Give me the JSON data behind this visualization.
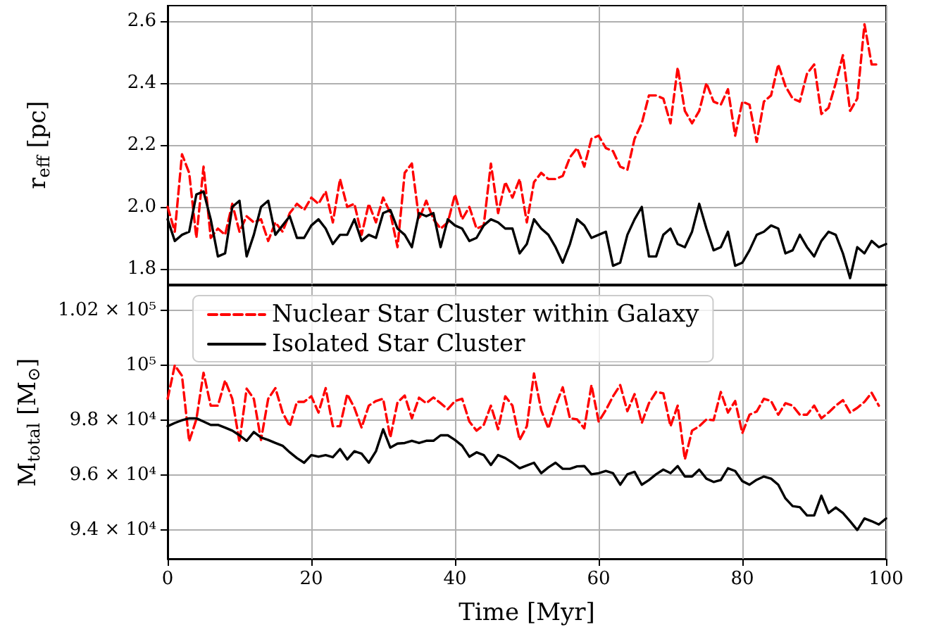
{
  "chart_data": [
    {
      "type": "line",
      "ylabel": "r$_{eff}$ [pc]",
      "xlim": [
        0,
        100
      ],
      "xticks": [
        0,
        20,
        40,
        60,
        80,
        100
      ],
      "ylim": [
        1.75,
        2.65
      ],
      "yticks": [
        1.8,
        {
          "value": 2,
          "label": "2.0"
        },
        2.2,
        2.4,
        2.6
      ],
      "grid": true,
      "marker": "none",
      "tick_labels": "y",
      "series": [
        {
          "color": "#ff0000",
          "line_style": "dashed",
          "x": [
            0,
            1,
            2,
            3,
            4,
            5,
            6,
            7,
            8,
            9,
            10,
            11,
            12,
            13,
            14,
            15,
            16,
            17,
            18,
            19,
            20,
            21,
            22,
            23,
            24,
            25,
            26,
            27,
            28,
            29,
            30,
            31,
            32,
            33,
            34,
            35,
            36,
            37,
            38,
            39,
            40,
            41,
            42,
            43,
            44,
            45,
            46,
            47,
            48,
            49,
            50,
            51,
            52,
            53,
            54,
            55,
            56,
            57,
            58,
            59,
            60,
            61,
            62,
            63,
            64,
            65,
            66,
            67,
            68,
            69,
            70,
            71,
            72,
            73,
            74,
            75,
            76,
            77,
            78,
            79,
            80,
            81,
            82,
            83,
            84,
            85,
            86,
            87,
            88,
            89,
            90,
            91,
            92,
            93,
            94,
            95,
            96,
            97,
            98,
            99
          ],
          "values": [
            2.0,
            1.92,
            2.17,
            2.11,
            1.9,
            2.13,
            1.9,
            1.93,
            1.91,
            2.01,
            1.92,
            1.97,
            1.95,
            1.96,
            1.89,
            1.95,
            1.92,
            1.98,
            2.01,
            1.99,
            2.03,
            2.01,
            2.05,
            1.95,
            2.09,
            2.0,
            2.01,
            1.91,
            2.01,
            1.95,
            2.03,
            1.98,
            1.87,
            2.11,
            2.14,
            1.96,
            2.02,
            1.96,
            1.93,
            1.95,
            2.04,
            1.96,
            2.0,
            1.93,
            1.94,
            2.14,
            1.98,
            2.08,
            2.03,
            2.09,
            1.95,
            2.08,
            2.11,
            2.09,
            2.09,
            2.1,
            2.16,
            2.19,
            2.13,
            2.22,
            2.23,
            2.19,
            2.18,
            2.13,
            2.12,
            2.22,
            2.27,
            2.36,
            2.36,
            2.35,
            2.27,
            2.45,
            2.31,
            2.27,
            2.31,
            2.4,
            2.34,
            2.33,
            2.38,
            2.23,
            2.34,
            2.33,
            2.21,
            2.34,
            2.36,
            2.46,
            2.39,
            2.35,
            2.34,
            2.43,
            2.46,
            2.3,
            2.32,
            2.4,
            2.49,
            2.31,
            2.35,
            2.59,
            2.46,
            2.46
          ]
        },
        {
          "color": "#000000",
          "line_style": "solid",
          "x": [
            0,
            1,
            2,
            3,
            4,
            5,
            6,
            7,
            8,
            9,
            10,
            11,
            12,
            13,
            14,
            15,
            16,
            17,
            18,
            19,
            20,
            21,
            22,
            23,
            24,
            25,
            26,
            27,
            28,
            29,
            30,
            31,
            32,
            33,
            34,
            35,
            36,
            37,
            38,
            39,
            40,
            41,
            42,
            43,
            44,
            45,
            46,
            47,
            48,
            49,
            50,
            51,
            52,
            53,
            54,
            55,
            56,
            57,
            58,
            59,
            60,
            61,
            62,
            63,
            64,
            65,
            66,
            67,
            68,
            69,
            70,
            71,
            72,
            73,
            74,
            75,
            76,
            77,
            78,
            79,
            80,
            81,
            82,
            83,
            84,
            85,
            86,
            87,
            88,
            89,
            90,
            91,
            92,
            93,
            94,
            95,
            96,
            97,
            98,
            99,
            100
          ],
          "values": [
            1.96,
            1.89,
            1.91,
            1.92,
            2.04,
            2.05,
            1.96,
            1.84,
            1.85,
            2.0,
            2.02,
            1.84,
            1.91,
            2.0,
            2.02,
            1.91,
            1.94,
            1.97,
            1.9,
            1.9,
            1.94,
            1.96,
            1.93,
            1.88,
            1.91,
            1.91,
            1.96,
            1.89,
            1.91,
            1.9,
            1.98,
            1.99,
            1.93,
            1.91,
            1.87,
            1.98,
            1.97,
            1.98,
            1.87,
            1.96,
            1.94,
            1.93,
            1.89,
            1.9,
            1.94,
            1.96,
            1.95,
            1.93,
            1.93,
            1.85,
            1.88,
            1.96,
            1.93,
            1.91,
            1.87,
            1.82,
            1.88,
            1.96,
            1.94,
            1.9,
            1.91,
            1.92,
            1.81,
            1.82,
            1.91,
            1.96,
            2.0,
            1.84,
            1.84,
            1.91,
            1.93,
            1.88,
            1.87,
            1.92,
            2.01,
            1.93,
            1.86,
            1.87,
            1.92,
            1.81,
            1.82,
            1.86,
            1.91,
            1.92,
            1.94,
            1.93,
            1.85,
            1.86,
            1.91,
            1.87,
            1.84,
            1.89,
            1.92,
            1.91,
            1.85,
            1.77,
            1.87,
            1.85,
            1.89,
            1.87,
            1.88
          ]
        }
      ]
    },
    {
      "type": "line",
      "xlabel": "Time [Myr]",
      "ylabel": "M$_{total}$ [M$_{⊙}$]",
      "xlim": [
        0,
        100
      ],
      "xticks": [
        0,
        20,
        40,
        60,
        80,
        100
      ],
      "ylim": [
        92950,
        102900
      ],
      "yticks": [
        {
          "value": 94000,
          "label": "9.4 × 10⁴"
        },
        {
          "value": 96000,
          "label": "9.6 × 10⁴"
        },
        {
          "value": 98000,
          "label": "9.8 × 10⁴"
        },
        {
          "value": 100000,
          "label": "10⁵"
        },
        {
          "value": 102000,
          "label": "1.02 × 10⁵"
        }
      ],
      "grid": true,
      "marker": "none",
      "legend": "top left",
      "series": [
        {
          "name": "Nuclear Star Cluster within Galaxy",
          "color": "#ff0000",
          "line_style": "dashed",
          "x": [
            0,
            1,
            2,
            3,
            4,
            5,
            6,
            7,
            8,
            9,
            10,
            11,
            12,
            13,
            14,
            15,
            16,
            17,
            18,
            19,
            20,
            21,
            22,
            23,
            24,
            25,
            26,
            27,
            28,
            29,
            30,
            31,
            32,
            33,
            34,
            35,
            36,
            37,
            38,
            39,
            40,
            41,
            42,
            43,
            44,
            45,
            46,
            47,
            48,
            49,
            50,
            51,
            52,
            53,
            54,
            55,
            56,
            57,
            58,
            59,
            60,
            61,
            62,
            63,
            64,
            65,
            66,
            67,
            68,
            69,
            70,
            71,
            72,
            73,
            74,
            75,
            76,
            77,
            78,
            79,
            80,
            81,
            82,
            83,
            84,
            85,
            86,
            87,
            88,
            89,
            90,
            91,
            92,
            93,
            94,
            95,
            96,
            97,
            98,
            99
          ],
          "values": [
            98780,
            100000,
            99620,
            97230,
            98030,
            99730,
            98530,
            98530,
            99450,
            98780,
            97200,
            99150,
            98780,
            97280,
            98780,
            99170,
            98280,
            97780,
            98670,
            98670,
            98870,
            98280,
            99170,
            97780,
            97780,
            98950,
            98450,
            97730,
            98530,
            98700,
            98780,
            97370,
            98650,
            98900,
            98070,
            98820,
            98620,
            98830,
            98620,
            98400,
            98700,
            98780,
            97950,
            97620,
            97830,
            98530,
            97670,
            98870,
            98530,
            97280,
            97780,
            99700,
            98370,
            97700,
            98530,
            99200,
            98070,
            98030,
            97700,
            99280,
            97950,
            98370,
            98870,
            99280,
            98330,
            98950,
            97900,
            98620,
            99030,
            98980,
            97780,
            98530,
            96570,
            97620,
            97780,
            98030,
            98000,
            99030,
            98280,
            98700,
            97530,
            98200,
            98320,
            98780,
            98700,
            98200,
            98620,
            98530,
            98200,
            98200,
            98530,
            98070,
            98280,
            98530,
            98730,
            98280,
            98450,
            98670,
            99000,
            98530
          ]
        },
        {
          "name": "Isolated Star Cluster",
          "color": "#000000",
          "line_style": "solid",
          "x": [
            0,
            1,
            2,
            3,
            4,
            5,
            6,
            7,
            8,
            9,
            10,
            11,
            12,
            13,
            14,
            15,
            16,
            17,
            18,
            19,
            20,
            21,
            22,
            23,
            24,
            25,
            26,
            27,
            28,
            29,
            30,
            31,
            32,
            33,
            34,
            35,
            36,
            37,
            38,
            39,
            40,
            41,
            42,
            43,
            44,
            45,
            46,
            47,
            48,
            49,
            50,
            51,
            52,
            53,
            54,
            55,
            56,
            57,
            58,
            59,
            60,
            61,
            62,
            63,
            64,
            65,
            66,
            67,
            68,
            69,
            70,
            71,
            72,
            73,
            74,
            75,
            76,
            77,
            78,
            79,
            80,
            81,
            82,
            83,
            84,
            85,
            86,
            87,
            88,
            89,
            90,
            91,
            92,
            93,
            94,
            95,
            96,
            97,
            98,
            99,
            100
          ],
          "values": [
            97780,
            97900,
            98000,
            98070,
            98070,
            97950,
            97830,
            97830,
            97730,
            97620,
            97450,
            97250,
            97570,
            97370,
            97280,
            97170,
            97070,
            96830,
            96620,
            96450,
            96730,
            96670,
            96730,
            96650,
            96950,
            96570,
            96870,
            96780,
            96450,
            96870,
            97670,
            97000,
            97150,
            97170,
            97250,
            97170,
            97250,
            97250,
            97450,
            97450,
            97280,
            97070,
            96670,
            96830,
            96730,
            96370,
            96730,
            96620,
            96450,
            96250,
            96350,
            96450,
            96070,
            96280,
            96450,
            96230,
            96230,
            96320,
            96330,
            96030,
            96070,
            96150,
            96070,
            95650,
            96030,
            96120,
            95650,
            95820,
            96030,
            96200,
            96070,
            96330,
            95950,
            95950,
            96200,
            95870,
            95750,
            95820,
            96250,
            96150,
            95780,
            95650,
            95830,
            95950,
            95870,
            95650,
            95150,
            94870,
            94830,
            94530,
            94530,
            95250,
            94620,
            94820,
            94620,
            94320,
            94000,
            94420,
            94320,
            94200,
            94420
          ]
        }
      ]
    }
  ]
}
